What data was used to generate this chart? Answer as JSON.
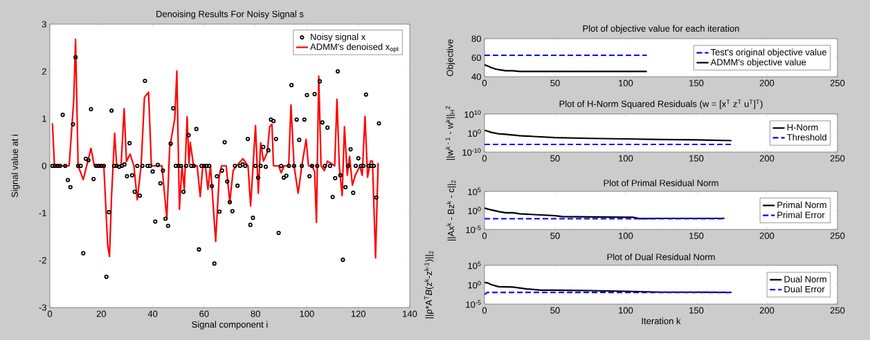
{
  "chart_data": [
    {
      "type": "scatter",
      "title": "Denoising Results For Noisy Signal s",
      "xlabel": "Signal component i",
      "ylabel": "Signal value at i",
      "xlim": [
        0,
        140
      ],
      "xticks": [
        0,
        20,
        40,
        60,
        80,
        100,
        120,
        140
      ],
      "ylim": [
        -3,
        3
      ],
      "yticks": [
        -3,
        -2,
        -1,
        0,
        1,
        2,
        3
      ],
      "grid": false,
      "legend": "top right",
      "series": [
        {
          "name": "Noisy signal x",
          "type": "scatter",
          "marker": "circle",
          "color": "#000000",
          "x": [
            1,
            2,
            3,
            4,
            5,
            6,
            7,
            8,
            9,
            10,
            11,
            12,
            13,
            14,
            15,
            16,
            17,
            18,
            19,
            20,
            21,
            22,
            23,
            24,
            25,
            26,
            27,
            28,
            29,
            30,
            31,
            32,
            33,
            34,
            35,
            36,
            37,
            38,
            39,
            40,
            41,
            42,
            43,
            44,
            45,
            46,
            47,
            48,
            49,
            50,
            51,
            52,
            53,
            54,
            55,
            56,
            57,
            58,
            59,
            60,
            61,
            62,
            63,
            64,
            65,
            66,
            67,
            68,
            69,
            70,
            71,
            72,
            73,
            74,
            75,
            76,
            77,
            78,
            79,
            80,
            81,
            82,
            83,
            84,
            85,
            86,
            87,
            88,
            89,
            90,
            91,
            92,
            93,
            94,
            95,
            96,
            97,
            98,
            99,
            100,
            101,
            102,
            103,
            104,
            105,
            106,
            107,
            108,
            109,
            110,
            111,
            112,
            113,
            114,
            115,
            116,
            117,
            118,
            119,
            120,
            121,
            122,
            123,
            124,
            125,
            126,
            127,
            128
          ],
          "values": [
            0,
            0,
            0,
            0,
            1.08,
            0,
            -0.3,
            -0.45,
            0.88,
            2.3,
            0,
            0,
            -1.85,
            0.15,
            0.12,
            1.2,
            -0.28,
            0,
            0,
            0,
            0,
            -2.35,
            -0.98,
            1.17,
            0,
            0,
            -0.02,
            0,
            0.03,
            -0.22,
            0.48,
            -0.2,
            -0.55,
            0,
            -0.63,
            0,
            1.8,
            0,
            0,
            -0.12,
            -1.18,
            0.02,
            -0.37,
            -0.1,
            -1.12,
            -1.27,
            0.47,
            1.22,
            0,
            0,
            0,
            -0.55,
            0,
            0.65,
            0,
            0,
            0.78,
            -1.77,
            0,
            0,
            0,
            0,
            -0.43,
            -2.07,
            -0.22,
            -0.97,
            -0.1,
            0.5,
            -0.33,
            -0.77,
            -0.96,
            0,
            -0.42,
            0,
            0.03,
            0,
            0.57,
            -1.25,
            -1.1,
            0,
            -0.25,
            0,
            0.4,
            -0.02,
            0.33,
            0.98,
            0.95,
            0.57,
            -1.42,
            0,
            -0.25,
            -0.21,
            0,
            1.71,
            0,
            0.98,
            0.55,
            0,
            0.98,
            1.5,
            -0.22,
            0,
            1.52,
            0,
            1.79,
            0.92,
            0,
            0.81,
            0,
            -0.66,
            -0.26,
            2.0,
            -0.2,
            -1.99,
            -0.45,
            0,
            0.35,
            -0.57,
            0,
            0.16,
            0,
            0,
            1.51,
            0,
            0,
            0,
            -0.67,
            0.9
          ]
        },
        {
          "name": "ADMM's denoised x$_{opt}$",
          "type": "line",
          "color": "#ff0000",
          "line_style": "solid",
          "x": [
            1,
            1.8,
            7.5,
            9.3,
            10,
            11,
            13,
            16,
            17.3,
            21,
            22.5,
            23.2,
            24,
            25.2,
            26,
            27.7,
            28.9,
            29.8,
            31.2,
            32.7,
            34,
            35.5,
            36.8,
            38.4,
            39.5,
            43.6,
            45.5,
            46.6,
            48.6,
            49.4,
            50.4,
            51.4,
            52.3,
            53.4,
            54.1,
            54.6,
            55.9,
            57.3,
            58.5,
            59.5,
            60.5,
            61.5,
            62.5,
            64.5,
            65.9,
            66.8,
            68.6,
            70,
            71.3,
            72.6,
            75.1,
            77.1,
            78.1,
            80,
            81.1,
            82,
            83.1,
            84.6,
            85.5,
            86.4,
            87,
            89,
            90,
            91.1,
            92.9,
            93.8,
            95,
            96.6,
            98,
            99.7,
            100.6,
            102,
            103,
            103.7,
            104.6,
            105.5,
            106.8,
            108,
            110.8,
            111.7,
            112.6,
            113.7,
            114.6,
            115.7,
            116.6,
            117.7,
            118.8,
            120.6,
            121.5,
            122.6,
            123.6,
            124.7,
            125.5,
            126.7,
            127.7
          ],
          "values": [
            0.9,
            0,
            0,
            1.4,
            2.68,
            0,
            -0.29,
            0.37,
            0,
            0,
            -1.68,
            -1.92,
            -0.65,
            0.69,
            0,
            0,
            1.21,
            0.09,
            0.25,
            0,
            -0.72,
            0,
            1.45,
            1.56,
            0,
            0,
            -1.12,
            0.38,
            1.0,
            2.01,
            -0.92,
            0,
            -0.5,
            1.04,
            0.04,
            0.5,
            0,
            0,
            -0.65,
            0,
            0,
            -0.5,
            0,
            -1.6,
            -0.2,
            0,
            0,
            -0.77,
            -0.1,
            0,
            0.15,
            0,
            -0.85,
            0.85,
            -0.58,
            0.49,
            0.1,
            0.29,
            0.83,
            0.88,
            0,
            0,
            -0.15,
            0,
            0,
            1.29,
            0,
            -0.58,
            0,
            0.56,
            0,
            0,
            -0.12,
            -1.2,
            1.9,
            0,
            -0.1,
            0.1,
            0,
            1.41,
            0,
            -0.63,
            0.83,
            -0.2,
            0.2,
            -0.41,
            -0.2,
            0,
            -0.2,
            1.05,
            -0.24,
            0.1,
            0.1,
            -1.95,
            0.06
          ]
        }
      ]
    },
    {
      "type": "line",
      "title": "Plot of objective value for each iteration",
      "ylabel": "Objective",
      "xlim": [
        0,
        250
      ],
      "xticks": [
        0,
        50,
        100,
        150,
        200,
        250
      ],
      "ylim": [
        40,
        80
      ],
      "yticks": [
        40,
        60,
        80
      ],
      "grid": false,
      "legend": "right",
      "series": [
        {
          "name": "Test's original objective value",
          "color": "#0000ff",
          "line_style": "dashed",
          "x": [
            0,
            115
          ],
          "values": [
            62.5,
            62.5
          ]
        },
        {
          "name": "ADMM's objective value",
          "color": "#000000",
          "line_style": "solid",
          "x": [
            0,
            2,
            5,
            8,
            12,
            15,
            20,
            25,
            30,
            50,
            80,
            115
          ],
          "values": [
            52.5,
            51.5,
            49.5,
            48,
            47,
            46.3,
            46.2,
            45.6,
            45.5,
            45.5,
            45.5,
            45.5
          ]
        }
      ]
    },
    {
      "type": "line",
      "title": "Plot of H-Norm Squared Residuals (w = [x$^{T}$ z$^{T}$ u$^{T}$]$^{T}$)",
      "ylabel": "||w$^{k - 1}$ - w$^{k}$||$_{H}$$^{2}$",
      "log": "y",
      "xlim": [
        0,
        250
      ],
      "xticks": [
        0,
        50,
        100,
        150,
        200,
        250
      ],
      "ylim": [
        1e-10,
        10000000000.0
      ],
      "yticks": [
        {
          "value": 1e-10,
          "label": "10$^{-10}$"
        },
        {
          "value": 1,
          "label": "10$^{0}$"
        },
        {
          "value": 10000000000.0,
          "label": "10$^{10}$"
        }
      ],
      "grid": false,
      "legend": "right",
      "series": [
        {
          "name": "H-Norm",
          "color": "#000000",
          "line_style": "solid",
          "x": [
            0,
            2,
            5,
            10,
            15,
            25,
            35,
            50,
            75,
            100,
            125,
            150,
            175
          ],
          "values": [
            30,
            10,
            2,
            0.4,
            0.2,
            0.04,
            0.015,
            0.004,
            0.0015,
            0.0008,
            0.0004,
            0.00025,
            0.0001
          ]
        },
        {
          "name": "Threshold",
          "color": "#0000ff",
          "line_style": "dashed",
          "x": [
            0,
            175
          ],
          "values": [
            1e-06,
            1e-06
          ]
        }
      ]
    },
    {
      "type": "line",
      "title": "Plot of Primal Residual Norm",
      "ylabel": "||Ax$^{k}$ - Bz$^{k}$ - c||$_{2}$",
      "log": "y",
      "xlim": [
        0,
        250
      ],
      "xticks": [
        0,
        50,
        100,
        150,
        200,
        250
      ],
      "ylim": [
        1e-05,
        100000.0
      ],
      "yticks": [
        {
          "value": 1e-05,
          "label": "10$^{-5}$"
        },
        {
          "value": 1,
          "label": "10$^{0}$"
        },
        {
          "value": 100000.0,
          "label": "10$^{5}$"
        }
      ],
      "grid": false,
      "legend": "right",
      "series": [
        {
          "name": "Primal Norm",
          "color": "#000000",
          "line_style": "solid",
          "x": [
            0,
            3,
            10,
            15,
            20,
            25,
            35,
            50,
            55,
            75,
            100,
            105,
            110,
            125,
            150,
            170
          ],
          "values": [
            4,
            2,
            0.5,
            0.25,
            0.25,
            0.13,
            0.08,
            0.04,
            0.025,
            0.02,
            0.016,
            0.016,
            0.007,
            0.008,
            0.008,
            0.008
          ]
        },
        {
          "name": "Primal Error",
          "color": "#0000ff",
          "line_style": "dashed",
          "x": [
            0,
            170
          ],
          "values": [
            0.007,
            0.007
          ]
        }
      ]
    },
    {
      "type": "line",
      "title": "Plot of Dual Residual Norm",
      "xlabel": "Iteration k",
      "ylabel": "||ρ*A$^{T}$*B*(z$^{k}$-z$^{k-1}$)||$_{2}$",
      "log": "y",
      "xlim": [
        0,
        250
      ],
      "xticks": [
        0,
        50,
        100,
        150,
        200,
        250
      ],
      "ylim": [
        1e-05,
        100000.0
      ],
      "yticks": [
        {
          "value": 1e-05,
          "label": "10$^{-5}$"
        },
        {
          "value": 1,
          "label": "10$^{0}$"
        },
        {
          "value": 100000.0,
          "label": "10$^{5}$"
        }
      ],
      "grid": false,
      "legend": "right",
      "series": [
        {
          "name": "Dual Norm",
          "color": "#000000",
          "line_style": "solid",
          "x": [
            0,
            2,
            5,
            10,
            20,
            30,
            40,
            50,
            75,
            100,
            125,
            150,
            175
          ],
          "values": [
            4,
            3,
            1,
            0.3,
            0.25,
            0.08,
            0.04,
            0.04,
            0.03,
            0.02,
            0.012,
            0.012,
            0.01
          ]
        },
        {
          "name": "Dual Error",
          "color": "#0000ff",
          "line_style": "dashed",
          "x": [
            0,
            2,
            175
          ],
          "values": [
            0.003,
            0.01,
            0.01
          ]
        }
      ]
    }
  ]
}
